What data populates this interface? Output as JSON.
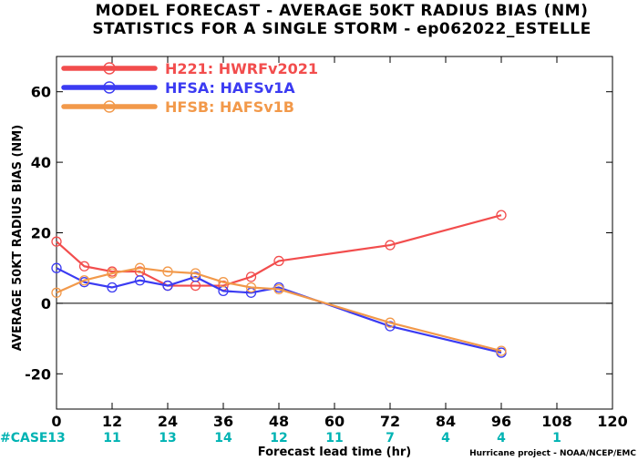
{
  "chart_data": {
    "type": "line",
    "title": "MODEL FORECAST - AVERAGE 50KT RADIUS BIAS (NM)",
    "subtitle": "STATISTICS FOR A SINGLE STORM - ep062022_ESTELLE",
    "xlabel": "Forecast lead time (hr)",
    "ylabel": "AVERAGE 50KT RADIUS BIAS (NM)",
    "xlim": [
      0,
      120
    ],
    "ylim": [
      -30,
      70
    ],
    "x_ticks": [
      0,
      12,
      24,
      36,
      48,
      60,
      72,
      84,
      96,
      108,
      120
    ],
    "y_ticks": [
      -20,
      0,
      20,
      40,
      60
    ],
    "grid": false,
    "legend_position": "top-left",
    "zero_line": true,
    "series": [
      {
        "name": "H221: HWRFv2021",
        "color": "#f24d4d",
        "x": [
          0,
          6,
          12,
          18,
          24,
          30,
          36,
          42,
          48,
          72,
          96
        ],
        "y": [
          17.5,
          10.5,
          9,
          9,
          5,
          5,
          5,
          7.5,
          12,
          16.5,
          25
        ]
      },
      {
        "name": "HFSA: HAFSv1A",
        "color": "#3b3bf2",
        "x": [
          0,
          6,
          12,
          18,
          24,
          30,
          36,
          42,
          48,
          72,
          96
        ],
        "y": [
          10,
          6,
          4.5,
          6.5,
          5,
          7.5,
          3.5,
          3,
          4.5,
          -6.5,
          -14
        ]
      },
      {
        "name": "HFSB: HAFSv1B",
        "color": "#f2994a",
        "x": [
          0,
          6,
          12,
          18,
          24,
          30,
          36,
          42,
          48,
          72,
          96
        ],
        "y": [
          3,
          6.5,
          8.5,
          10,
          9,
          8.5,
          6,
          4.5,
          4,
          -5.5,
          -13.5
        ]
      }
    ],
    "case_label": "#CASE",
    "case_color": "#00b3b3",
    "cases": [
      {
        "x": 0,
        "n": "13"
      },
      {
        "x": 12,
        "n": "11"
      },
      {
        "x": 24,
        "n": "13"
      },
      {
        "x": 36,
        "n": "14"
      },
      {
        "x": 48,
        "n": "12"
      },
      {
        "x": 60,
        "n": "11"
      },
      {
        "x": 72,
        "n": "7"
      },
      {
        "x": 84,
        "n": "4"
      },
      {
        "x": 96,
        "n": "4"
      },
      {
        "x": 108,
        "n": "1"
      }
    ],
    "credit": "Hurricane project - NOAA/NCEP/EMC"
  }
}
